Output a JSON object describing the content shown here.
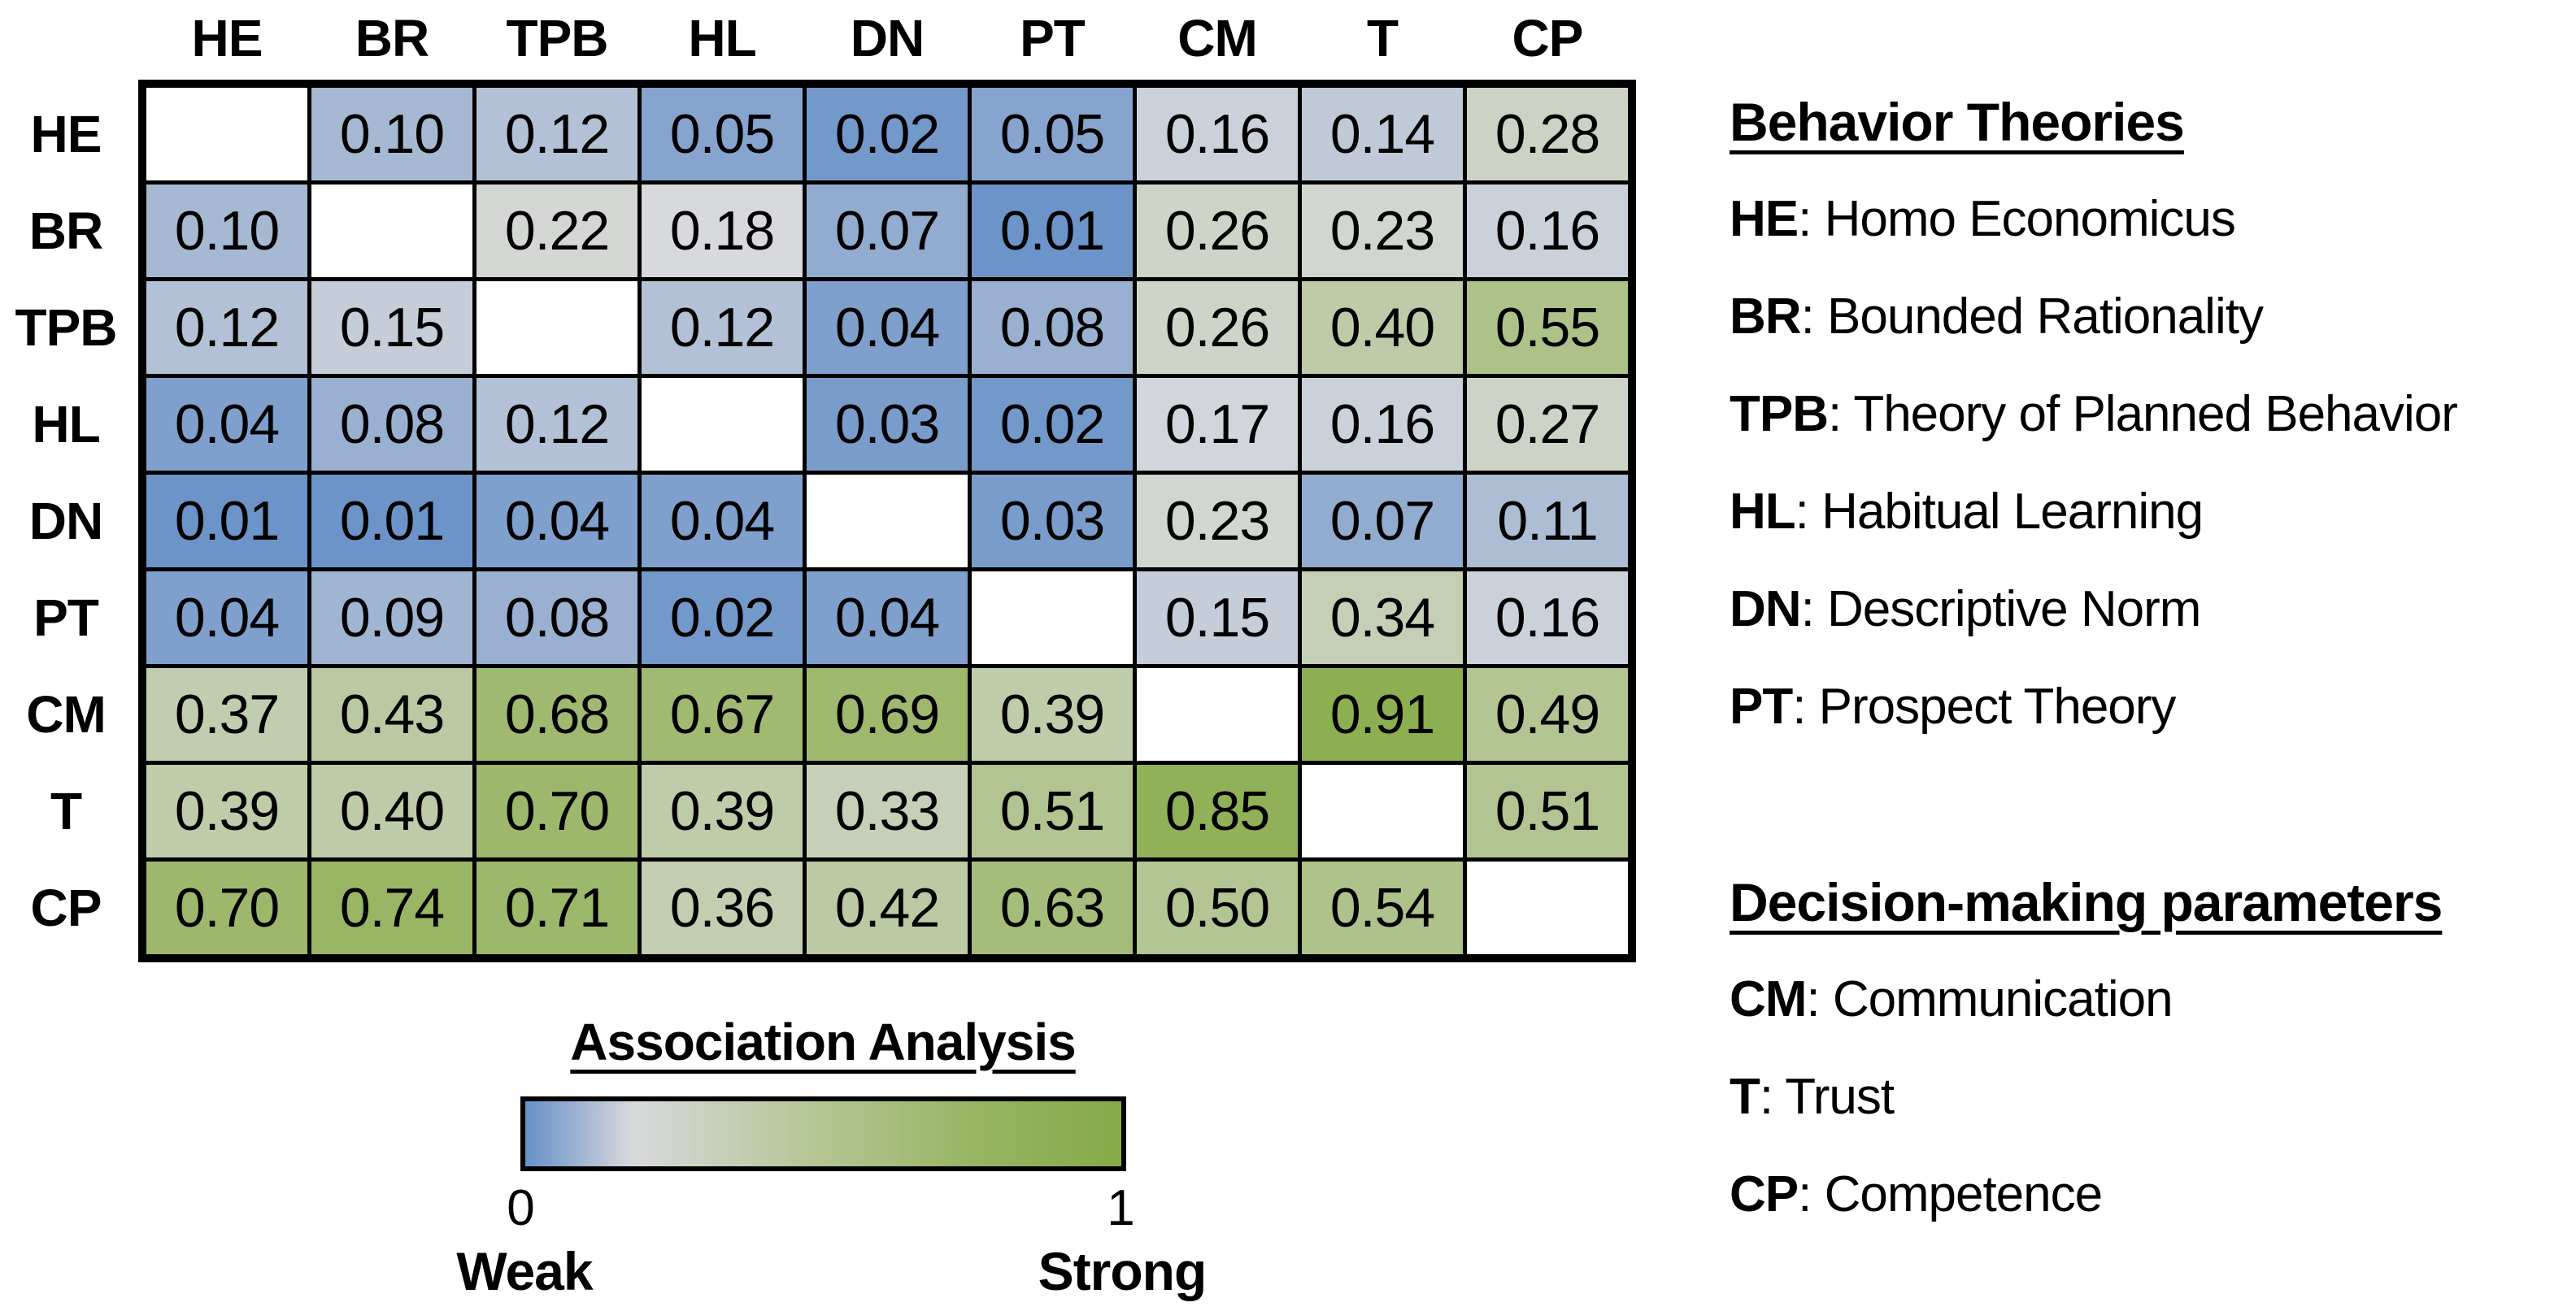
{
  "chart_data": {
    "type": "heatmap",
    "x_labels": [
      "HE",
      "BR",
      "TPB",
      "HL",
      "DN",
      "PT",
      "CM",
      "T",
      "CP"
    ],
    "y_labels": [
      "HE",
      "BR",
      "TPB",
      "HL",
      "DN",
      "PT",
      "CM",
      "T",
      "CP"
    ],
    "matrix": [
      [
        null,
        0.1,
        0.12,
        0.05,
        0.02,
        0.05,
        0.16,
        0.14,
        0.28
      ],
      [
        0.1,
        null,
        0.22,
        0.18,
        0.07,
        0.01,
        0.26,
        0.23,
        0.16
      ],
      [
        0.12,
        0.15,
        null,
        0.12,
        0.04,
        0.08,
        0.26,
        0.4,
        0.55
      ],
      [
        0.04,
        0.08,
        0.12,
        null,
        0.03,
        0.02,
        0.17,
        0.16,
        0.27
      ],
      [
        0.01,
        0.01,
        0.04,
        0.04,
        null,
        0.03,
        0.23,
        0.07,
        0.11
      ],
      [
        0.04,
        0.09,
        0.08,
        0.02,
        0.04,
        null,
        0.15,
        0.34,
        0.16
      ],
      [
        0.37,
        0.43,
        0.68,
        0.67,
        0.69,
        0.39,
        null,
        0.91,
        0.49
      ],
      [
        0.39,
        0.4,
        0.7,
        0.39,
        0.33,
        0.51,
        0.85,
        null,
        0.51
      ],
      [
        0.7,
        0.74,
        0.71,
        0.36,
        0.42,
        0.63,
        0.5,
        0.54,
        null
      ]
    ],
    "value_decimals": 2,
    "colorbar": {
      "title": "Association Analysis",
      "min": 0,
      "max": 1,
      "min_label": "0",
      "max_label": "1",
      "weak_label": "Weak",
      "strong_label": "Strong"
    },
    "colormap_stops": [
      {
        "t": 0.0,
        "color": "#6690c8"
      },
      {
        "t": 0.18,
        "color": "#d8d9dc"
      },
      {
        "t": 0.45,
        "color": "#b8c89c"
      },
      {
        "t": 0.75,
        "color": "#98b563"
      },
      {
        "t": 1.0,
        "color": "#85ab47"
      }
    ],
    "empty_cell_color": "#ffffff"
  },
  "side_panel": {
    "behavior_theories": {
      "title": "Behavior Theories",
      "items": [
        {
          "abbr": "HE",
          "name": "Homo Economicus"
        },
        {
          "abbr": "BR",
          "name": "Bounded Rationality"
        },
        {
          "abbr": "TPB",
          "name": "Theory of Planned Behavior"
        },
        {
          "abbr": "HL",
          "name": "Habitual Learning"
        },
        {
          "abbr": "DN",
          "name": "Descriptive Norm"
        },
        {
          "abbr": "PT",
          "name": "Prospect Theory"
        }
      ]
    },
    "decision_parameters": {
      "title": "Decision-making parameters",
      "items": [
        {
          "abbr": "CM",
          "name": "Communication"
        },
        {
          "abbr": "T",
          "name": "Trust"
        },
        {
          "abbr": "CP",
          "name": "Competence"
        }
      ]
    }
  }
}
